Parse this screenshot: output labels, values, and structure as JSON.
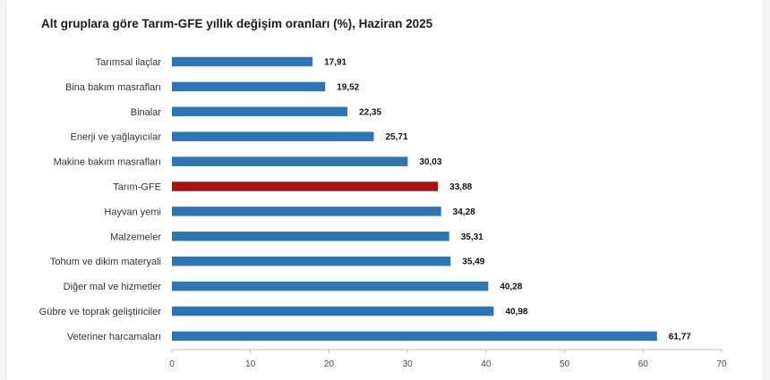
{
  "chart_data": {
    "type": "bar",
    "orientation": "horizontal",
    "title": "Alt gruplara göre Tarım-GFE yıllık değişim oranları (%), Haziran 2025",
    "xlabel": "",
    "ylabel": "",
    "xlim": [
      0,
      70
    ],
    "x_ticks": [
      "0",
      "10",
      "20",
      "30",
      "40",
      "50",
      "60",
      "70"
    ],
    "grid": false,
    "categories": [
      "Tarımsal ilaçlar",
      "Bina bakım masrafları",
      "Binalar",
      "Enerji  ve yağlayıcılar",
      "Makine bakım masrafları",
      "Tarım-GFE",
      "Hayvan yemi",
      "Malzemeler",
      "Tohum ve dikim materyali",
      "Diğer mal ve hizmetler",
      "Gübre ve toprak geliştiriciler",
      "Veteriner harcamaları"
    ],
    "values": [
      17.91,
      19.52,
      22.35,
      25.71,
      30.03,
      33.88,
      34.28,
      35.31,
      35.49,
      40.28,
      40.98,
      61.77
    ],
    "value_labels": [
      "17,91",
      "19,52",
      "22,35",
      "25,71",
      "30,03",
      "33,88",
      "34,28",
      "35,31",
      "35,49",
      "40,28",
      "40,98",
      "61,77"
    ],
    "highlight_category": "Tarım-GFE",
    "colors": {
      "bar": "#2e75b6",
      "highlight": "#a31515",
      "axis": "#bfbfbf"
    }
  }
}
